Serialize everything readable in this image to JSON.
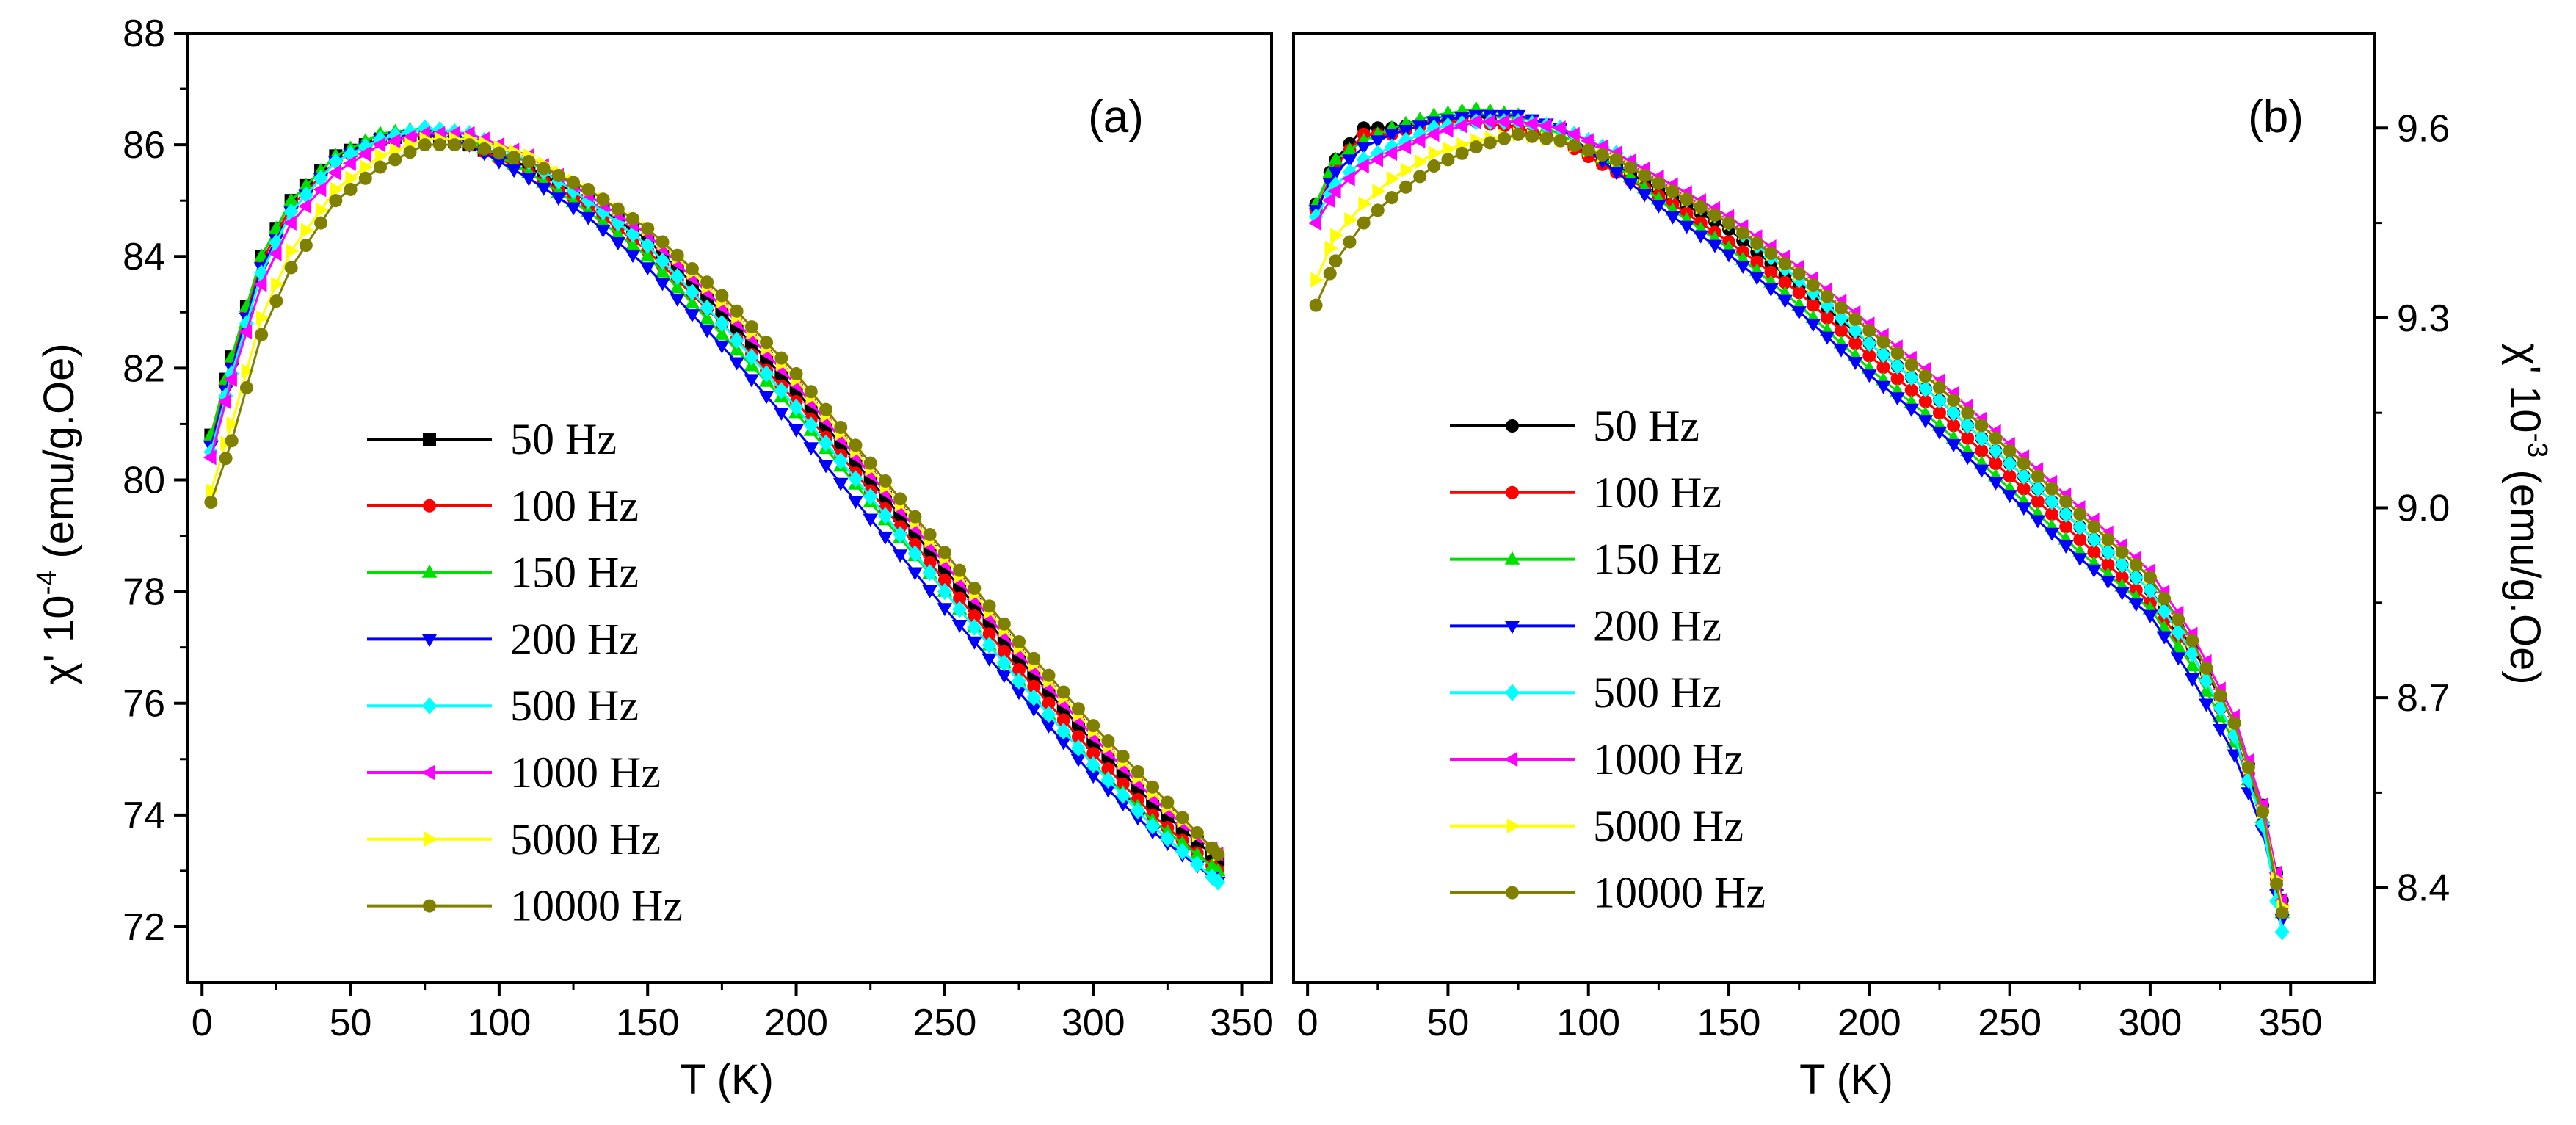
{
  "chart_data": [
    {
      "type": "line",
      "panel_label": "(a)",
      "xlabel": "T (K)",
      "ylabel_main": "χ' 10",
      "ylabel_exp": "-4",
      "ylabel_unit": " (emu/g.Oe)",
      "xlim": [
        -5,
        360
      ],
      "ylim": [
        71,
        88
      ],
      "xticks": [
        0,
        50,
        100,
        150,
        200,
        250,
        300,
        350
      ],
      "yticks": [
        72,
        74,
        76,
        78,
        80,
        82,
        84,
        86,
        88
      ],
      "legend_position": "center-left",
      "series": [
        {
          "name": "50 Hz",
          "color": "#000000",
          "marker": "square",
          "t": [
            3,
            10,
            20,
            30,
            45,
            60,
            75,
            90,
            110,
            130,
            150,
            175,
            200,
            225,
            250,
            275,
            300,
            320,
            342
          ],
          "values": [
            80.8,
            82.2,
            84.0,
            85.0,
            85.8,
            86.1,
            86.2,
            86.0,
            85.6,
            85.0,
            84.3,
            83.0,
            81.6,
            80.0,
            78.4,
            76.8,
            75.3,
            74.2,
            73.2
          ]
        },
        {
          "name": "100 Hz",
          "color": "#ff0000",
          "marker": "circle",
          "t": [
            3,
            10,
            20,
            30,
            45,
            60,
            75,
            90,
            110,
            130,
            150,
            175,
            200,
            225,
            250,
            275,
            300,
            320,
            342
          ],
          "values": [
            80.7,
            82.1,
            83.9,
            84.9,
            85.7,
            86.1,
            86.2,
            86.0,
            85.5,
            84.9,
            84.1,
            82.8,
            81.4,
            79.8,
            78.2,
            76.6,
            75.1,
            74.0,
            73.0
          ]
        },
        {
          "name": "150 Hz",
          "color": "#00e000",
          "marker": "triangle-up",
          "t": [
            3,
            10,
            20,
            30,
            45,
            60,
            75,
            90,
            110,
            130,
            150,
            175,
            200,
            225,
            250,
            275,
            300,
            320,
            342
          ],
          "values": [
            80.8,
            82.2,
            84.0,
            85.0,
            85.8,
            86.2,
            86.3,
            86.1,
            85.5,
            84.8,
            84.0,
            82.6,
            81.2,
            79.6,
            78.0,
            76.4,
            74.9,
            73.9,
            73.0
          ]
        },
        {
          "name": "200 Hz",
          "color": "#0000ff",
          "marker": "triangle-down",
          "t": [
            3,
            10,
            20,
            30,
            45,
            60,
            75,
            90,
            110,
            130,
            150,
            175,
            200,
            225,
            250,
            275,
            300,
            320,
            342
          ],
          "values": [
            80.6,
            82.0,
            83.8,
            84.8,
            85.7,
            86.1,
            86.2,
            86.0,
            85.4,
            84.7,
            83.8,
            82.4,
            80.9,
            79.3,
            77.7,
            76.2,
            74.7,
            73.7,
            72.8
          ]
        },
        {
          "name": "500 Hz",
          "color": "#00ffff",
          "marker": "diamond",
          "t": [
            3,
            10,
            20,
            30,
            45,
            60,
            75,
            90,
            110,
            130,
            150,
            175,
            200,
            225,
            250,
            275,
            300,
            320,
            342
          ],
          "values": [
            80.5,
            81.9,
            83.7,
            84.8,
            85.7,
            86.1,
            86.3,
            86.2,
            85.7,
            85.0,
            84.2,
            82.8,
            81.3,
            79.7,
            78.0,
            76.4,
            74.9,
            73.8,
            72.8
          ]
        },
        {
          "name": "1000 Hz",
          "color": "#ff00ff",
          "marker": "triangle-left",
          "t": [
            3,
            10,
            20,
            30,
            45,
            60,
            75,
            90,
            110,
            130,
            150,
            175,
            200,
            225,
            250,
            275,
            300,
            320,
            342
          ],
          "values": [
            80.4,
            81.8,
            83.5,
            84.6,
            85.5,
            86.0,
            86.2,
            86.2,
            85.8,
            85.1,
            84.4,
            83.1,
            81.7,
            80.1,
            78.5,
            76.9,
            75.4,
            74.3,
            73.3
          ]
        },
        {
          "name": "5000 Hz",
          "color": "#ffff00",
          "marker": "triangle-right",
          "t": [
            3,
            10,
            20,
            30,
            45,
            60,
            75,
            90,
            110,
            130,
            150,
            175,
            200,
            225,
            250,
            275,
            300,
            320,
            342
          ],
          "values": [
            79.8,
            81.0,
            82.9,
            84.1,
            85.2,
            85.8,
            86.1,
            86.1,
            85.8,
            85.2,
            84.5,
            83.2,
            81.8,
            80.2,
            78.6,
            77.0,
            75.5,
            74.4,
            73.3
          ]
        },
        {
          "name": "10000 Hz",
          "color": "#808000",
          "marker": "circle",
          "t": [
            3,
            10,
            20,
            30,
            45,
            60,
            75,
            90,
            110,
            130,
            150,
            175,
            200,
            225,
            250,
            275,
            300,
            320,
            342
          ],
          "values": [
            79.6,
            80.7,
            82.6,
            83.8,
            85.0,
            85.6,
            86.0,
            86.0,
            85.7,
            85.2,
            84.5,
            83.3,
            81.9,
            80.3,
            78.7,
            77.1,
            75.6,
            74.5,
            73.3
          ]
        }
      ]
    },
    {
      "type": "line",
      "panel_label": "(b)",
      "xlabel": "T (K)",
      "ylabel_main": "χ' 10",
      "ylabel_exp": "-3",
      "ylabel_unit": " (emu/g.Oe)",
      "xlim": [
        -5,
        380
      ],
      "ylim": [
        8.25,
        9.75
      ],
      "xticks": [
        0,
        50,
        100,
        150,
        200,
        250,
        300,
        350
      ],
      "yticks": [
        8.4,
        8.7,
        9.0,
        9.3,
        9.6
      ],
      "ytick_labels": [
        "8.4",
        "8.7",
        "9.0",
        "9.3",
        "9.6"
      ],
      "legend_position": "center-left",
      "series": [
        {
          "name": "50 Hz",
          "color": "#000000",
          "marker": "circle",
          "t": [
            3,
            10,
            20,
            30,
            45,
            60,
            75,
            90,
            110,
            130,
            150,
            175,
            200,
            225,
            250,
            275,
            300,
            315,
            330,
            340,
            347
          ],
          "values": [
            9.48,
            9.55,
            9.6,
            9.6,
            9.61,
            9.62,
            9.6,
            9.58,
            9.54,
            9.49,
            9.44,
            9.35,
            9.26,
            9.17,
            9.07,
            8.97,
            8.87,
            8.78,
            8.66,
            8.53,
            8.38
          ]
        },
        {
          "name": "100 Hz",
          "color": "#ff0000",
          "marker": "circle",
          "t": [
            3,
            10,
            20,
            30,
            45,
            60,
            75,
            90,
            110,
            130,
            150,
            175,
            200,
            225,
            250,
            275,
            300,
            315,
            330,
            340,
            347
          ],
          "values": [
            9.47,
            9.54,
            9.59,
            9.59,
            9.61,
            9.61,
            9.6,
            9.58,
            9.53,
            9.48,
            9.42,
            9.34,
            9.24,
            9.15,
            9.05,
            8.95,
            8.85,
            8.77,
            8.64,
            8.52,
            8.37
          ]
        },
        {
          "name": "150 Hz",
          "color": "#00e000",
          "marker": "triangle-up",
          "t": [
            3,
            10,
            20,
            30,
            45,
            60,
            75,
            90,
            110,
            130,
            150,
            175,
            200,
            225,
            250,
            275,
            300,
            315,
            330,
            340,
            347
          ],
          "values": [
            9.48,
            9.55,
            9.58,
            9.6,
            9.62,
            9.63,
            9.62,
            9.59,
            9.54,
            9.47,
            9.41,
            9.32,
            9.22,
            9.13,
            9.03,
            8.93,
            8.84,
            8.75,
            8.63,
            8.51,
            8.36
          ]
        },
        {
          "name": "200 Hz",
          "color": "#0000ff",
          "marker": "triangle-down",
          "t": [
            3,
            10,
            20,
            30,
            45,
            60,
            75,
            90,
            110,
            130,
            150,
            175,
            200,
            225,
            250,
            275,
            300,
            315,
            330,
            340,
            347
          ],
          "values": [
            9.47,
            9.53,
            9.57,
            9.59,
            9.61,
            9.62,
            9.62,
            9.6,
            9.53,
            9.46,
            9.4,
            9.31,
            9.21,
            9.12,
            9.02,
            8.92,
            8.83,
            8.73,
            8.61,
            8.49,
            8.35
          ]
        },
        {
          "name": "500 Hz",
          "color": "#00ffff",
          "marker": "diamond",
          "t": [
            3,
            10,
            20,
            30,
            45,
            60,
            75,
            90,
            110,
            130,
            150,
            175,
            200,
            225,
            250,
            275,
            300,
            315,
            330,
            340,
            347
          ],
          "values": [
            9.46,
            9.51,
            9.55,
            9.57,
            9.6,
            9.61,
            9.61,
            9.6,
            9.56,
            9.5,
            9.45,
            9.36,
            9.26,
            9.17,
            9.07,
            8.97,
            8.87,
            8.77,
            8.64,
            8.5,
            8.33
          ]
        },
        {
          "name": "1000 Hz",
          "color": "#ff00ff",
          "marker": "triangle-left",
          "t": [
            3,
            10,
            20,
            30,
            45,
            60,
            75,
            90,
            110,
            130,
            150,
            175,
            200,
            225,
            250,
            275,
            300,
            315,
            330,
            340,
            347
          ],
          "values": [
            9.45,
            9.5,
            9.54,
            9.56,
            9.59,
            9.61,
            9.61,
            9.6,
            9.56,
            9.51,
            9.46,
            9.38,
            9.29,
            9.2,
            9.1,
            9.0,
            8.9,
            8.8,
            8.67,
            8.53,
            8.38
          ]
        },
        {
          "name": "5000 Hz",
          "color": "#ffff00",
          "marker": "triangle-right",
          "t": [
            3,
            10,
            20,
            30,
            45,
            60,
            75,
            90,
            110,
            130,
            150,
            175,
            200,
            225,
            250,
            275,
            300,
            315,
            330,
            340,
            347
          ],
          "values": [
            9.36,
            9.43,
            9.48,
            9.52,
            9.56,
            9.58,
            9.59,
            9.58,
            9.55,
            9.5,
            9.45,
            9.37,
            9.28,
            9.19,
            9.09,
            8.99,
            8.89,
            8.79,
            8.66,
            8.52,
            8.37
          ]
        },
        {
          "name": "10000 Hz",
          "color": "#808000",
          "marker": "circle",
          "t": [
            3,
            10,
            20,
            30,
            45,
            60,
            75,
            90,
            110,
            130,
            150,
            175,
            200,
            225,
            250,
            275,
            300,
            315,
            330,
            340,
            347
          ],
          "values": [
            9.32,
            9.39,
            9.45,
            9.49,
            9.54,
            9.57,
            9.59,
            9.58,
            9.55,
            9.5,
            9.45,
            9.37,
            9.28,
            9.19,
            9.09,
            8.99,
            8.89,
            8.79,
            8.66,
            8.52,
            8.36
          ]
        }
      ]
    }
  ]
}
